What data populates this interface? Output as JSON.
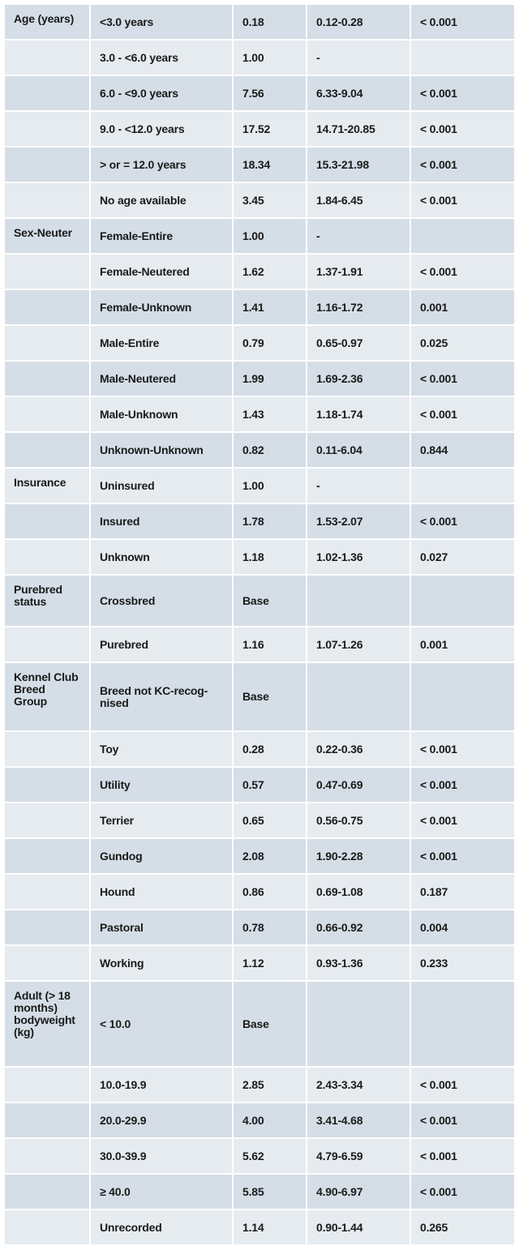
{
  "rows": [
    {
      "variable": "Age (years)",
      "category": "<3.0 years",
      "value": "0.18",
      "ci": "0.12-0.28",
      "p": "< 0.001"
    },
    {
      "variable": "",
      "category": "3.0 - <6.0 years",
      "value": "1.00",
      "ci": "-",
      "p": ""
    },
    {
      "variable": "",
      "category": "6.0 - <9.0 years",
      "value": "7.56",
      "ci": "6.33-9.04",
      "p": "< 0.001"
    },
    {
      "variable": "",
      "category": "9.0 - <12.0 years",
      "value": "17.52",
      "ci": "14.71-20.85",
      "p": "< 0.001"
    },
    {
      "variable": "",
      "category": "> or = 12.0 years",
      "value": "18.34",
      "ci": "15.3-21.98",
      "p": "< 0.001"
    },
    {
      "variable": "",
      "category": "No age available",
      "value": "3.45",
      "ci": "1.84-6.45",
      "p": "< 0.001"
    },
    {
      "variable": "Sex-Neuter",
      "category": "Female-Entire",
      "value": "1.00",
      "ci": "-",
      "p": ""
    },
    {
      "variable": "",
      "category": "Female-Neutered",
      "value": "1.62",
      "ci": "1.37-1.91",
      "p": "< 0.001"
    },
    {
      "variable": "",
      "category": "Female-Unknown",
      "value": "1.41",
      "ci": "1.16-1.72",
      "p": "0.001"
    },
    {
      "variable": "",
      "category": "Male-Entire",
      "value": "0.79",
      "ci": "0.65-0.97",
      "p": "0.025"
    },
    {
      "variable": "",
      "category": "Male-Neutered",
      "value": "1.99",
      "ci": "1.69-2.36",
      "p": "< 0.001"
    },
    {
      "variable": "",
      "category": "Male-Unknown",
      "value": "1.43",
      "ci": "1.18-1.74",
      "p": "< 0.001"
    },
    {
      "variable": "",
      "category": "Unknown-Unknown",
      "value": "0.82",
      "ci": "0.11-6.04",
      "p": "0.844"
    },
    {
      "variable": "Insurance",
      "category": "Uninsured",
      "value": "1.00",
      "ci": "-",
      "p": ""
    },
    {
      "variable": "",
      "category": "Insured",
      "value": "1.78",
      "ci": "1.53-2.07",
      "p": "< 0.001"
    },
    {
      "variable": "",
      "category": "Unknown",
      "value": "1.18",
      "ci": "1.02-1.36",
      "p": "0.027"
    },
    {
      "variable": "Purebred status",
      "category": "Crossbred",
      "value": "Base",
      "ci": "",
      "p": ""
    },
    {
      "variable": "",
      "category": "Purebred",
      "value": "1.16",
      "ci": "1.07-1.26",
      "p": "0.001"
    },
    {
      "variable": "Kennel Club Breed Group",
      "category": "Breed not KC-recog-nised",
      "value": "Base",
      "ci": "",
      "p": ""
    },
    {
      "variable": "",
      "category": "Toy",
      "value": "0.28",
      "ci": "0.22-0.36",
      "p": "< 0.001"
    },
    {
      "variable": "",
      "category": "Utility",
      "value": "0.57",
      "ci": "0.47-0.69",
      "p": "< 0.001"
    },
    {
      "variable": "",
      "category": "Terrier",
      "value": "0.65",
      "ci": "0.56-0.75",
      "p": "< 0.001"
    },
    {
      "variable": "",
      "category": "Gundog",
      "value": "2.08",
      "ci": "1.90-2.28",
      "p": "< 0.001"
    },
    {
      "variable": "",
      "category": "Hound",
      "value": "0.86",
      "ci": "0.69-1.08",
      "p": "0.187"
    },
    {
      "variable": "",
      "category": "Pastoral",
      "value": "0.78",
      "ci": "0.66-0.92",
      "p": "0.004"
    },
    {
      "variable": "",
      "category": "Working",
      "value": "1.12",
      "ci": "0.93-1.36",
      "p": "0.233"
    },
    {
      "variable": "Adult (> 18 months) bodyweight (kg)",
      "category": "< 10.0",
      "value": "Base",
      "ci": "",
      "p": ""
    },
    {
      "variable": "",
      "category": "10.0-19.9",
      "value": "2.85",
      "ci": "2.43-3.34",
      "p": "< 0.001"
    },
    {
      "variable": "",
      "category": "20.0-29.9",
      "value": "4.00",
      "ci": "3.41-4.68",
      "p": "< 0.001"
    },
    {
      "variable": "",
      "category": "30.0-39.9",
      "value": "5.62",
      "ci": "4.79-6.59",
      "p": "< 0.001"
    },
    {
      "variable": "",
      "category": "≥ 40.0",
      "value": "5.85",
      "ci": "4.90-6.97",
      "p": "< 0.001"
    },
    {
      "variable": "",
      "category": "Unrecorded",
      "value": "1.14",
      "ci": "0.90-1.44",
      "p": "0.265"
    }
  ]
}
